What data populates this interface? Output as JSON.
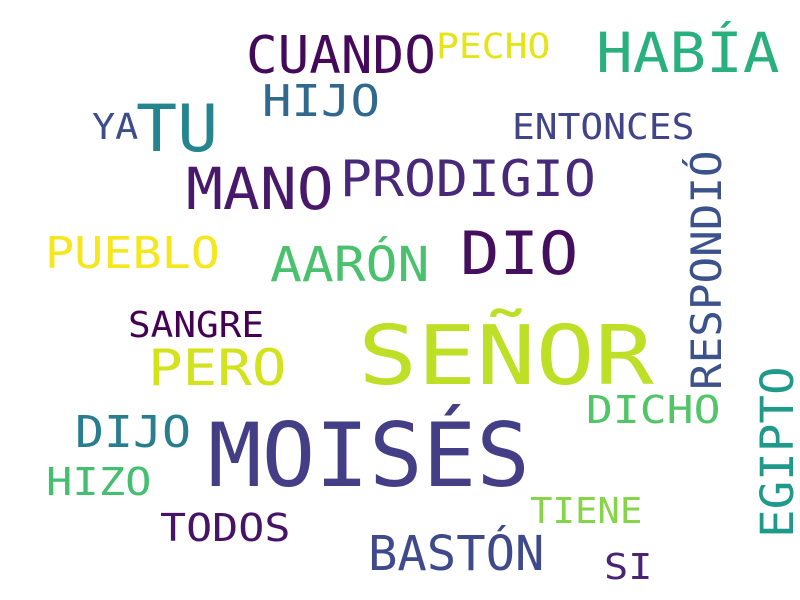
{
  "words": [
    {
      "text": "SEÑOR",
      "color": "#bddf26"
    },
    {
      "text": "MOISÉS",
      "color": "#433e85"
    },
    {
      "text": "DIO",
      "color": "#440f5f"
    },
    {
      "text": "TU",
      "color": "#25858e"
    },
    {
      "text": "MANO",
      "color": "#48186a"
    },
    {
      "text": "HABÍA",
      "color": "#2ab07f"
    },
    {
      "text": "PRODIGIO",
      "color": "#482878"
    },
    {
      "text": "CUANDO",
      "color": "#45095a"
    },
    {
      "text": "PERO",
      "color": "#d2e21b"
    },
    {
      "text": "AARÓN",
      "color": "#4ac16d"
    },
    {
      "text": "PUEBLO",
      "color": "#f5e61e"
    },
    {
      "text": "BASTÓN",
      "color": "#3e4a89"
    },
    {
      "text": "RESPONDIÓ",
      "color": "#3b528b"
    },
    {
      "text": "EGIPTO",
      "color": "#1f9a8a"
    },
    {
      "text": "HIJO",
      "color": "#31688e"
    },
    {
      "text": "DIJO",
      "color": "#287d8e"
    },
    {
      "text": "DICHO",
      "color": "#52c569"
    },
    {
      "text": "TODOS",
      "color": "#471365"
    },
    {
      "text": "HIZO",
      "color": "#44bf70"
    },
    {
      "text": "ENTONCES",
      "color": "#414487"
    },
    {
      "text": "SANGRE",
      "color": "#440154"
    },
    {
      "text": "TIENE",
      "color": "#86d549"
    },
    {
      "text": "PECHO",
      "color": "#e5e419"
    },
    {
      "text": "YA",
      "color": "#3e4c8a"
    },
    {
      "text": "SI",
      "color": "#482475"
    }
  ]
}
